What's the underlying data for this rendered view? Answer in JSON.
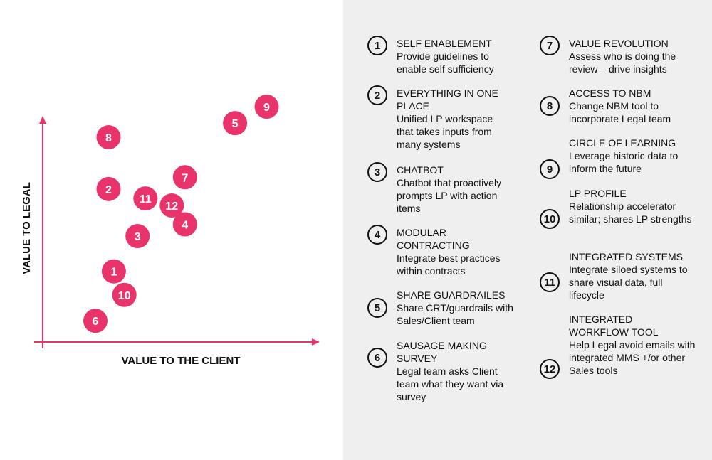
{
  "chart_data": {
    "type": "scatter",
    "xlabel": "VALUE TO THE CLIENT",
    "ylabel": "VALUE TO LEGAL",
    "point_color": "#e8336b",
    "points": [
      {
        "label": "1",
        "x": 2.7,
        "y": 3.0
      },
      {
        "label": "2",
        "x": 2.5,
        "y": 6.5
      },
      {
        "label": "3",
        "x": 3.6,
        "y": 4.5
      },
      {
        "label": "4",
        "x": 5.4,
        "y": 5.0
      },
      {
        "label": "5",
        "x": 7.3,
        "y": 9.3
      },
      {
        "label": "6",
        "x": 2.0,
        "y": 0.9
      },
      {
        "label": "7",
        "x": 5.4,
        "y": 7.0
      },
      {
        "label": "8",
        "x": 2.5,
        "y": 8.7
      },
      {
        "label": "9",
        "x": 8.5,
        "y": 10.0
      },
      {
        "label": "10",
        "x": 3.1,
        "y": 2.0
      },
      {
        "label": "11",
        "x": 3.9,
        "y": 6.1
      },
      {
        "label": "12",
        "x": 4.9,
        "y": 5.8
      }
    ],
    "xlim": [
      0,
      10
    ],
    "ylim": [
      0,
      10
    ],
    "grid": false
  },
  "legend": {
    "items": [
      {
        "num": "1",
        "title": "SELF ENABLEMENT",
        "desc": "Provide guidelines to enable self sufficiency"
      },
      {
        "num": "2",
        "title": "EVERYTHING IN ONE PLACE",
        "desc": "Unified LP workspace that takes inputs from many systems"
      },
      {
        "num": "3",
        "title": "CHATBOT",
        "desc": "Chatbot that proactively prompts LP with action items"
      },
      {
        "num": "4",
        "title": "MODULAR CONTRACTING",
        "desc": "Integrate best practices within contracts"
      },
      {
        "num": "5",
        "title": "SHARE GUARDRAILES",
        "desc": "Share CRT/guardrails with Sales/Client team"
      },
      {
        "num": "6",
        "title": "SAUSAGE MAKING SURVEY",
        "desc": "Legal team asks Client team what they want via survey"
      },
      {
        "num": "7",
        "title": "VALUE REVOLUTION",
        "desc": "Assess who is doing the review – drive insights"
      },
      {
        "num": "8",
        "title": "ACCESS TO NBM",
        "desc": "Change NBM tool to incorporate Legal team"
      },
      {
        "num": "9",
        "title": "CIRCLE OF LEARNING",
        "desc": "Leverage historic data to inform the future"
      },
      {
        "num": "10",
        "title": "LP PROFILE",
        "desc": "Relationship accelerator similar; shares LP strengths"
      },
      {
        "num": "11",
        "title": "INTEGRATED SYSTEMS",
        "desc": "Integrate siloed systems to share visual data, full lifecycle"
      },
      {
        "num": "12",
        "title": "INTEGRATED WORKFLOW TOOL",
        "desc": "Help Legal avoid emails with integrated MMS +/or other Sales tools"
      }
    ]
  }
}
